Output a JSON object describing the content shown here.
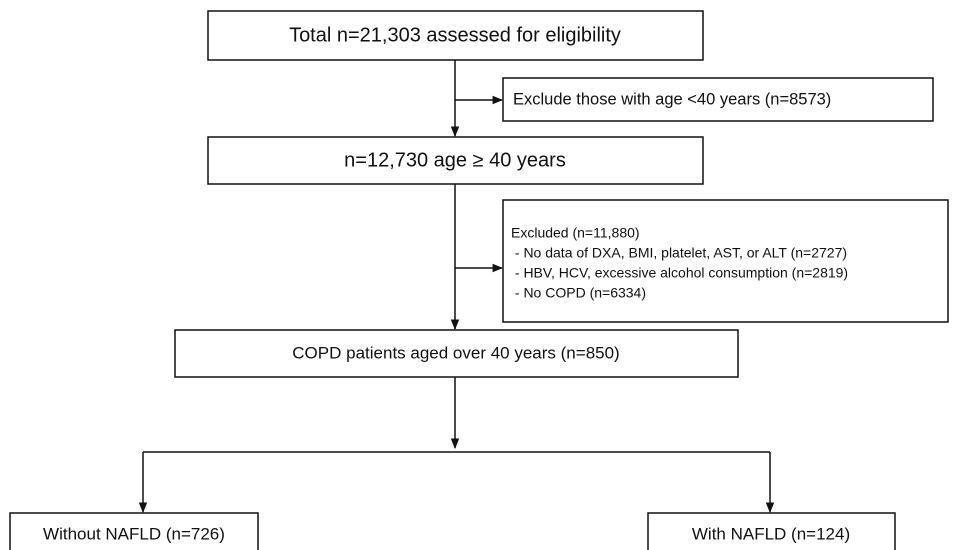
{
  "nodes": [
    {
      "label": "Total n=21,303 assessed for eligibility"
    },
    {
      "label": "Exclude those with age <40 years (n=8573)"
    },
    {
      "label": "n=12,730 age ≥ 40 years"
    },
    {
      "lines": [
        "Excluded (n=11,880)",
        " - No data of DXA, BMI, platelet, AST, or ALT (n=2727)",
        " - HBV, HCV, excessive alcohol consumption (n=2819)",
        " - No COPD (n=6334)"
      ]
    },
    {
      "label": "COPD patients aged over 40 years (n=850)"
    },
    {
      "label": "Without NAFLD (n=726)"
    },
    {
      "label": "With NAFLD (n=124)"
    }
  ]
}
